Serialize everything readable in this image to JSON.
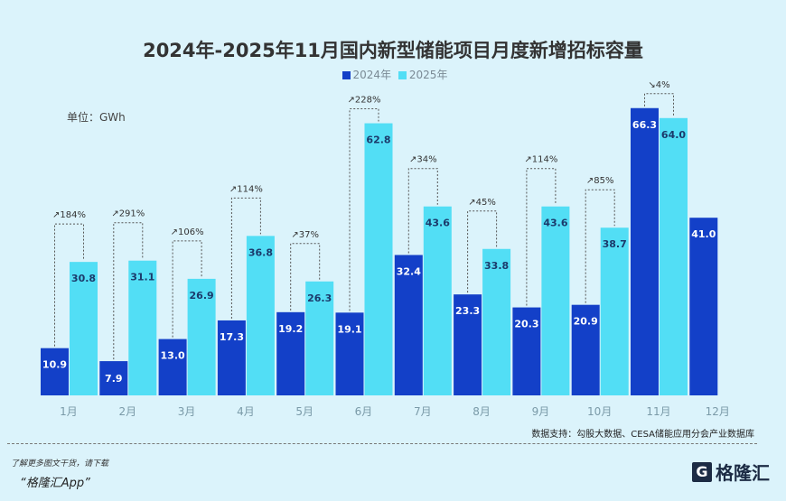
{
  "title": "2024年-2025年11月国内新型储能项目月度新增招标容量",
  "unit_label": "单位：GWh",
  "source": "数据支持：勾股大数据、CESA储能应用分会产业数据库",
  "promo_line1": "了解更多图文干货，请下载",
  "promo_line2": "“格隆汇App”",
  "logo_text": "格隆汇",
  "chart_data": {
    "type": "bar",
    "title": "2024年-2025年11月国内新型储能项目月度新增招标容量",
    "ylabel": "单位：GWh",
    "categories": [
      "1月",
      "2月",
      "3月",
      "4月",
      "5月",
      "6月",
      "7月",
      "8月",
      "9月",
      "10月",
      "11月",
      "12月"
    ],
    "series": [
      {
        "name": "2024年",
        "color": "#1340c8",
        "values": [
          10.9,
          7.9,
          13.0,
          17.3,
          19.2,
          19.1,
          32.4,
          23.3,
          20.3,
          20.9,
          66.3,
          41.0
        ]
      },
      {
        "name": "2025年",
        "color": "#52def5",
        "values": [
          30.8,
          31.1,
          26.9,
          36.8,
          26.3,
          62.8,
          43.6,
          33.8,
          43.6,
          38.7,
          64.0,
          null
        ]
      }
    ],
    "annotations": [
      "↗184%",
      "↗291%",
      "↗106%",
      "↗114%",
      "↗37%",
      "↗228%",
      "↗34%",
      "↗45%",
      "↗114%",
      "↗85%",
      "↘4%",
      ""
    ],
    "ylim": [
      0,
      70
    ],
    "grid": false,
    "legend": "top-center"
  }
}
